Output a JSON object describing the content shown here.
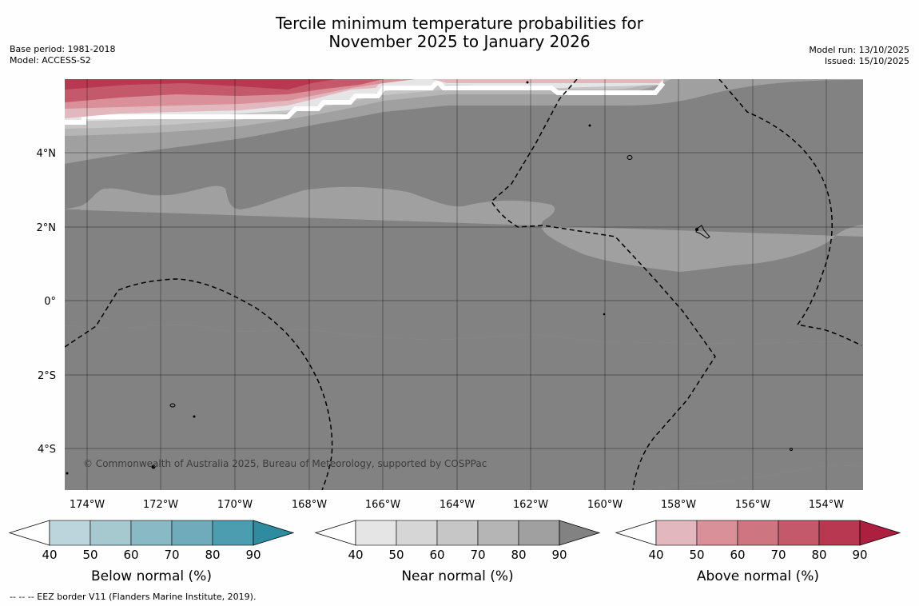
{
  "title": {
    "line1": "Tercile minimum temperature probabilities for",
    "line2": "November 2025 to January 2026"
  },
  "meta_left": {
    "base_period": "Base period: 1981-2018",
    "model": "Model: ACCESS-S2"
  },
  "meta_right": {
    "model_run": "Model run: 13/10/2025",
    "issued": "Issued: 15/10/2025"
  },
  "map": {
    "lon_range": [
      -174.6,
      -152.9
    ],
    "lat_range": [
      -5.0,
      6.0
    ],
    "lon_ticks": [
      "174°W",
      "172°W",
      "170°W",
      "168°W",
      "166°W",
      "164°W",
      "162°W",
      "160°W",
      "158°W",
      "156°W",
      "154°W"
    ],
    "lat_ticks": [
      "4°N",
      "2°N",
      "0°",
      "2°S",
      "4°S"
    ],
    "copyright": "© Commonwealth of Australia 2025, Bureau of Meteorology, supported by COSPPac"
  },
  "colorbars": [
    {
      "label": "Below normal (%)",
      "ticks": [
        "40",
        "50",
        "60",
        "70",
        "80",
        "90"
      ],
      "colors": [
        "#ffffff",
        "#bcd5dc",
        "#a6c8cf",
        "#8ab9c6",
        "#6fabba",
        "#4d9db0",
        "#2e8ba0"
      ]
    },
    {
      "label": "Near normal (%)",
      "ticks": [
        "40",
        "50",
        "60",
        "70",
        "80",
        "90"
      ],
      "colors": [
        "#ffffff",
        "#e5e5e5",
        "#d6d6d6",
        "#c6c6c6",
        "#b5b5b5",
        "#a0a0a0",
        "#828282"
      ]
    },
    {
      "label": "Above normal (%)",
      "ticks": [
        "40",
        "50",
        "60",
        "70",
        "80",
        "90"
      ],
      "colors": [
        "#ffffff",
        "#e2b7bd",
        "#d99099",
        "#cd7580",
        "#c3596a",
        "#b83751",
        "#ad1f3e"
      ]
    }
  ],
  "eez_note": "--  --  -- EEZ border V11 (Flanders Marine Institute, 2019)."
}
